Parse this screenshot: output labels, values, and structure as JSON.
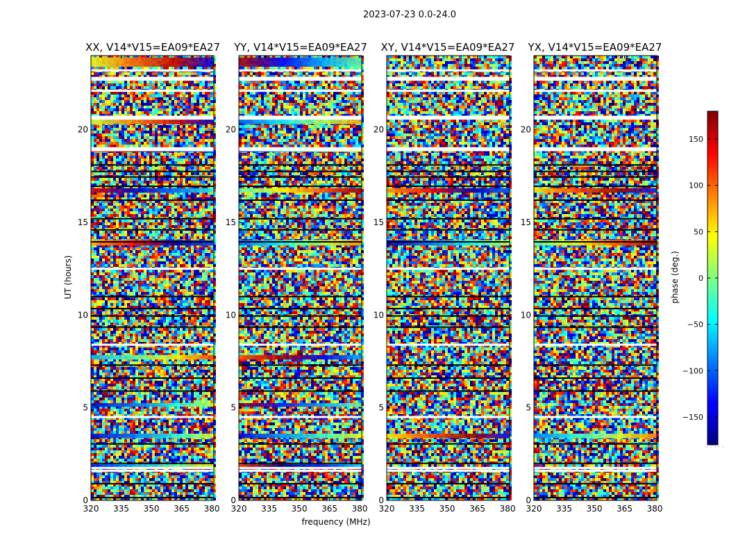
{
  "chart_data": {
    "type": "heatmap",
    "suptitle": "2023-07-23 0.0-24.0",
    "xlabel": "frequency (MHz)",
    "ylabel": "UT (hours)",
    "xlim": [
      320,
      381
    ],
    "ylim": [
      0,
      24
    ],
    "xticks": [
      320,
      335,
      350,
      365,
      380
    ],
    "yticks": [
      0,
      5,
      10,
      15,
      20
    ],
    "colorbar": {
      "label": "phase (deg.)",
      "range": [
        -180,
        180
      ],
      "ticks": [
        150,
        100,
        50,
        0,
        -50,
        -100,
        -150
      ],
      "ticklabels": [
        "150",
        "100",
        "50",
        "0",
        "−50",
        "−100",
        "−150"
      ],
      "colormap": "jet"
    },
    "panels": [
      {
        "title": "XX, V14*V15=EA09*EA27",
        "polarization": "XX"
      },
      {
        "title": "YY, V14*V15=EA09*EA27",
        "polarization": "YY"
      },
      {
        "title": "XY, V14*V15=EA09*EA27",
        "polarization": "XY"
      },
      {
        "title": "YX, V14*V15=EA09*EA27",
        "polarization": "YX"
      }
    ],
    "flagged_hours": [
      1.6,
      1.75,
      4.5,
      8.4,
      12.5,
      18.9,
      19.0,
      20.6,
      20.7,
      22.1,
      22.7,
      22.8,
      23.2
    ],
    "dark_hours": [
      0.15,
      0.9,
      2.0,
      3.05,
      5.9,
      6.6,
      7.3,
      9.35,
      9.95,
      10.35,
      11.0,
      13.95,
      14.6,
      15.2,
      16.2,
      16.95,
      17.45,
      17.75,
      18.1
    ],
    "coherent_bands": [
      {
        "panels": [
          "XX",
          "YY"
        ],
        "hours": [
          1.75,
          1.95
        ]
      },
      {
        "panels": [
          "XX",
          "YY",
          "XY",
          "YX"
        ],
        "hours": [
          3.35,
          3.6
        ]
      },
      {
        "panels": [
          "XX",
          "YY"
        ],
        "hours": [
          5.05,
          5.25
        ]
      },
      {
        "panels": [
          "XX",
          "YY"
        ],
        "hours": [
          7.6,
          7.85
        ]
      },
      {
        "panels": [
          "XX",
          "YY",
          "XY",
          "YX"
        ],
        "hours": [
          13.75,
          14.05
        ]
      },
      {
        "panels": [
          "XX",
          "YY",
          "XY",
          "YX"
        ],
        "hours": [
          16.6,
          16.85
        ]
      },
      {
        "panels": [
          "XX",
          "YY"
        ],
        "hours": [
          18.8,
          19.0
        ]
      },
      {
        "panels": [
          "XX",
          "YY"
        ],
        "hours": [
          20.3,
          20.6
        ]
      },
      {
        "panels": [
          "XX",
          "YY"
        ],
        "hours": [
          23.4,
          23.9
        ]
      }
    ]
  }
}
